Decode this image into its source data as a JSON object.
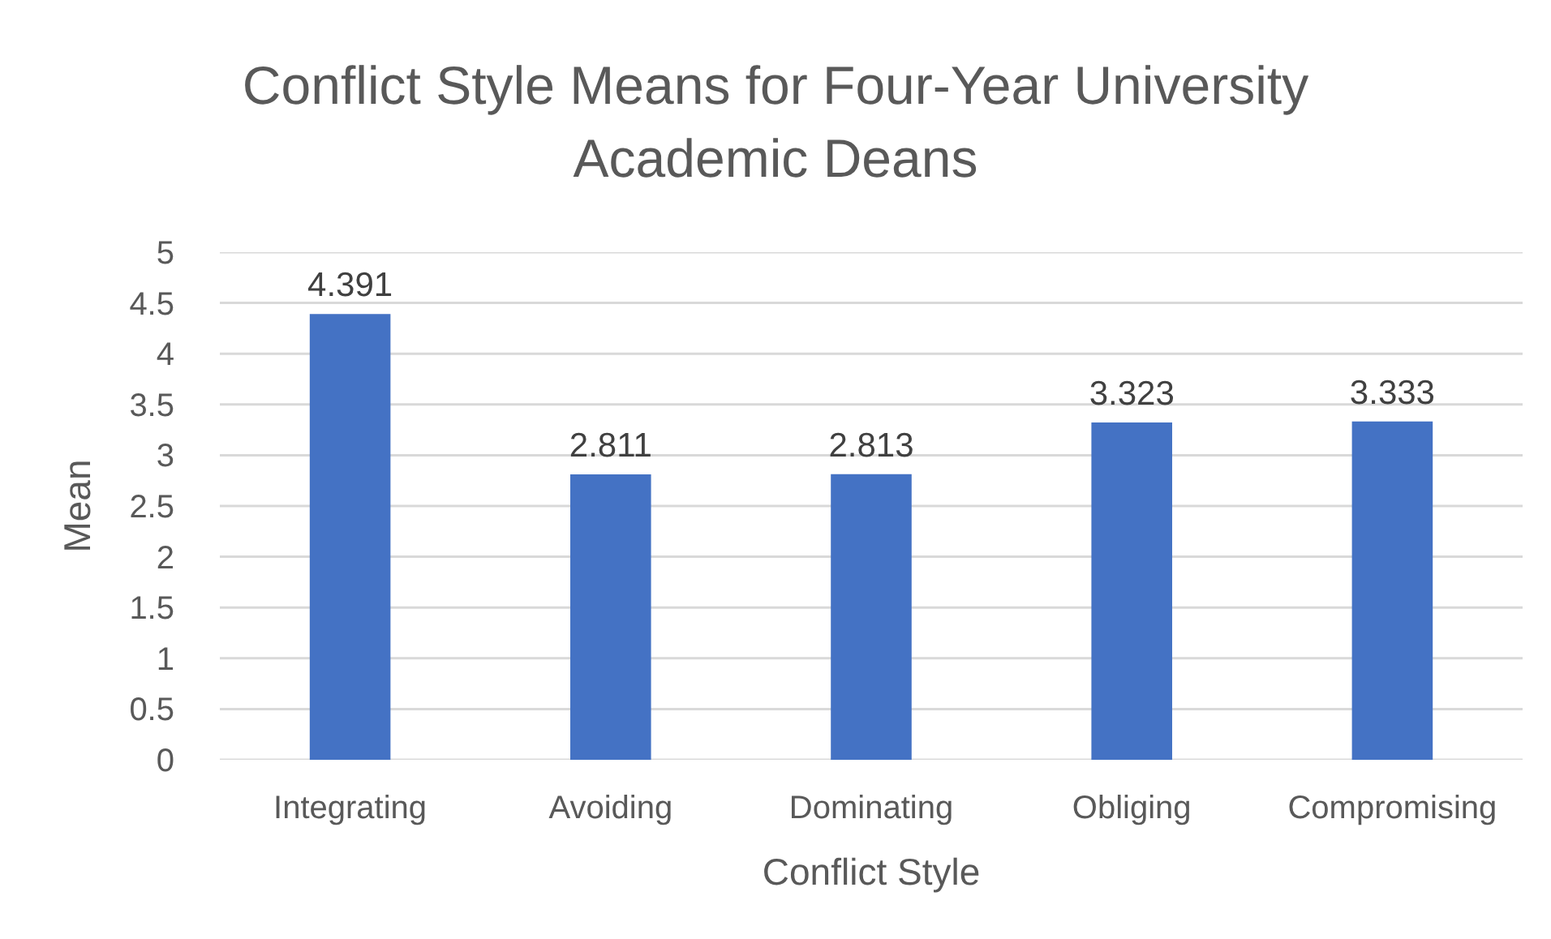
{
  "chart_data": {
    "type": "bar",
    "title": "Conflict Style Means for Four-Year University Academic Deans",
    "xlabel": "Conflict Style",
    "ylabel": "Mean",
    "categories": [
      "Integrating",
      "Avoiding",
      "Dominating",
      "Obliging",
      "Compromising"
    ],
    "values": [
      4.391,
      2.811,
      2.813,
      3.323,
      3.333
    ],
    "color": "#4472c4",
    "ylim": [
      0,
      5
    ],
    "yticks": [
      0,
      0.5,
      1,
      1.5,
      2,
      2.5,
      3,
      3.5,
      4,
      4.5,
      5
    ],
    "grid": "y",
    "data_labels": true
  }
}
